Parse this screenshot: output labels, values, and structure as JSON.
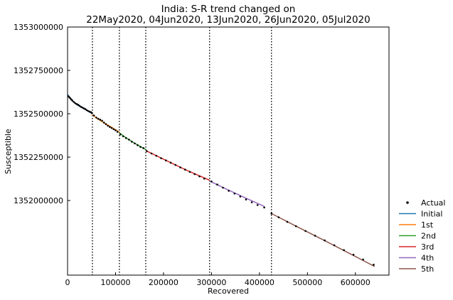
{
  "chart_data": {
    "type": "line",
    "title_lines": [
      "India: S-R trend changed on",
      "22May2020, 04Jun2020, 13Jun2020, 26Jun2020, 05Jul2020"
    ],
    "xlabel": "Recovered",
    "ylabel": "Susceptible",
    "xlim": [
      0,
      670000
    ],
    "ylim": [
      1351570000,
      1353000000
    ],
    "x_ticks": [
      0,
      100000,
      200000,
      300000,
      400000,
      500000,
      600000
    ],
    "x_tick_labels": [
      "0",
      "100000",
      "200000",
      "300000",
      "400000",
      "500000",
      "600000"
    ],
    "y_ticks": [
      1352000000,
      1352250000,
      1352500000,
      1352750000,
      1353000000
    ],
    "y_tick_labels": [
      "1352000000",
      "1352250000",
      "1352500000",
      "1352750000",
      "1353000000"
    ],
    "change_points": [
      51800,
      108000,
      163000,
      296000,
      425000
    ],
    "legend_placement": "bottom-right outside",
    "legend": [
      {
        "label": "Actual",
        "kind": "marker",
        "color": "#000000"
      },
      {
        "label": "Initial",
        "kind": "line",
        "color": "#1f77b4"
      },
      {
        "label": "1st",
        "kind": "line",
        "color": "#ff7f0e"
      },
      {
        "label": "2nd",
        "kind": "line",
        "color": "#2ca02c"
      },
      {
        "label": "3rd",
        "kind": "line",
        "color": "#d62728"
      },
      {
        "label": "4th",
        "kind": "line",
        "color": "#9467bd"
      },
      {
        "label": "5th",
        "kind": "line",
        "color": "#8c564b"
      }
    ],
    "series": [
      {
        "name": "Initial",
        "color": "#1f77b4",
        "x": [
          0,
          5000,
          10000,
          20000,
          30000,
          40000,
          51800
        ],
        "y": [
          1352612000,
          1352592000,
          1352574000,
          1352551000,
          1352535000,
          1352520000,
          1352500000
        ]
      },
      {
        "name": "1st",
        "color": "#ff7f0e",
        "x": [
          51800,
          60000,
          70000,
          80000,
          90000,
          100000,
          108000
        ],
        "y": [
          1352495000,
          1352476000,
          1352458000,
          1352441000,
          1352425000,
          1352408000,
          1352394000
        ]
      },
      {
        "name": "2nd",
        "color": "#2ca02c",
        "x": [
          108000,
          120000,
          130000,
          140000,
          150000,
          163000
        ],
        "y": [
          1352390000,
          1352365000,
          1352347000,
          1352330000,
          1352314000,
          1352294000
        ]
      },
      {
        "name": "3rd",
        "color": "#d62728",
        "x": [
          163000,
          200000,
          250000,
          296000
        ],
        "y": [
          1352288000,
          1352238000,
          1352172000,
          1352117000
        ]
      },
      {
        "name": "4th",
        "color": "#9467bd",
        "x": [
          296000,
          330000,
          370000,
          410000
        ],
        "y": [
          1352112000,
          1352067000,
          1352016000,
          1351966000
        ]
      },
      {
        "name": "5th",
        "color": "#8c564b",
        "x": [
          425000,
          480000,
          530000,
          580000,
          640000
        ],
        "y": [
          1351925000,
          1351847000,
          1351777000,
          1351706000,
          1351620000
        ]
      }
    ],
    "actual": {
      "x": [
        2000,
        4000,
        6000,
        8000,
        10000,
        13000,
        16000,
        19000,
        22000,
        25000,
        28000,
        31000,
        34000,
        37000,
        40000,
        43000,
        46000,
        49000,
        51000,
        55000,
        60000,
        64000,
        68000,
        72000,
        76000,
        80000,
        84000,
        88000,
        92000,
        96000,
        100000,
        104000,
        110000,
        116000,
        122000,
        128000,
        134000,
        140000,
        146000,
        152000,
        158000,
        165000,
        175000,
        185000,
        195000,
        205000,
        215000,
        225000,
        235000,
        245000,
        255000,
        265000,
        275000,
        285000,
        300000,
        312000,
        324000,
        336000,
        348000,
        360000,
        372000,
        384000,
        396000,
        410000,
        425000,
        440000,
        458000,
        476000,
        496000,
        516000,
        536000,
        556000,
        576000,
        596000,
        616000,
        638000
      ],
      "y": [
        1352600000,
        1352594000,
        1352588000,
        1352582000,
        1352576000,
        1352568000,
        1352561000,
        1352556000,
        1352552000,
        1352546000,
        1352540000,
        1352536000,
        1352531000,
        1352527000,
        1352521000,
        1352516000,
        1352512000,
        1352509000,
        1352503000,
        1352490000,
        1352478000,
        1352471000,
        1352466000,
        1352460000,
        1352449000,
        1352440000,
        1352431000,
        1352424000,
        1352418000,
        1352411000,
        1352405000,
        1352396000,
        1352381000,
        1352370000,
        1352360000,
        1352351000,
        1352339000,
        1352329000,
        1352319000,
        1352309000,
        1352302000,
        1352285000,
        1352271000,
        1352258000,
        1352244000,
        1352231000,
        1352218000,
        1352205000,
        1352191000,
        1352178000,
        1352165000,
        1352152000,
        1352139000,
        1352126000,
        1352110000,
        1352092000,
        1352074000,
        1352056000,
        1352040000,
        1352023000,
        1352006000,
        1351990000,
        1351974000,
        1351960000,
        1351925000,
        1351903000,
        1351877000,
        1351852000,
        1351824000,
        1351797000,
        1351770000,
        1351742000,
        1351714000,
        1351688000,
        1351660000,
        1351630000
      ]
    }
  }
}
